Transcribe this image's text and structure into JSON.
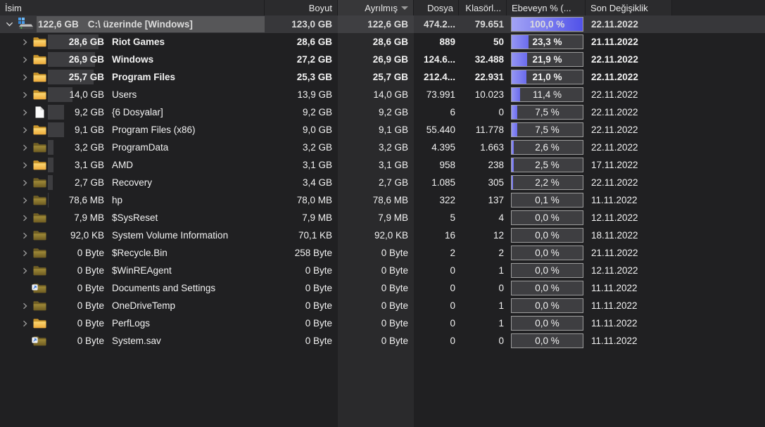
{
  "colors": {
    "background": "#202022",
    "sorted_column_band": "#2a2a2c",
    "selection": "#565658",
    "percent_bar_blue": "#7c7df0",
    "percent_box_border": "#9d9d9d",
    "folder_yellow": "#f2c44c",
    "header_background": "#2b2b2d"
  },
  "header": {
    "columns": [
      {
        "id": "name",
        "label": "İsim"
      },
      {
        "id": "size",
        "label": "Boyut"
      },
      {
        "id": "allocated",
        "label": "Ayrılmış",
        "sorted": "descending"
      },
      {
        "id": "files",
        "label": "Dosya"
      },
      {
        "id": "folders",
        "label": "Klasörl..."
      },
      {
        "id": "percent",
        "label": "Ebeveyn % (..."
      },
      {
        "id": "modified",
        "label": "Son Değişiklik"
      }
    ]
  },
  "rows": [
    {
      "level": 0,
      "expander": "expanded",
      "icon": "drive",
      "size_label": "122,6 GB",
      "name": "C:\\ üzerinde  [Windows]",
      "size": "123,0 GB",
      "allocated": "122,6 GB",
      "files": "474.2...",
      "folders": "79.651",
      "percent": "100,0 %",
      "percent_value": 100.0,
      "modified": "22.11.2022",
      "selected": true
    },
    {
      "level": 1,
      "expander": "collapsed",
      "icon": "folder",
      "size_label": "28,6 GB",
      "name": "Riot Games",
      "size": "28,6 GB",
      "allocated": "28,6 GB",
      "files": "889",
      "folders": "50",
      "percent": "23,3 %",
      "percent_value": 23.3,
      "modified": "21.11.2022"
    },
    {
      "level": 1,
      "expander": "collapsed",
      "icon": "folder",
      "size_label": "26,9 GB",
      "name": "Windows",
      "size": "27,2 GB",
      "allocated": "26,9 GB",
      "files": "124.6...",
      "folders": "32.488",
      "percent": "21,9 %",
      "percent_value": 21.9,
      "modified": "22.11.2022"
    },
    {
      "level": 1,
      "expander": "collapsed",
      "icon": "folder",
      "size_label": "25,7 GB",
      "name": "Program Files",
      "size": "25,3 GB",
      "allocated": "25,7 GB",
      "files": "212.4...",
      "folders": "22.931",
      "percent": "21,0 %",
      "percent_value": 21.0,
      "modified": "22.11.2022"
    },
    {
      "level": 1,
      "expander": "collapsed",
      "icon": "folder",
      "size_label": "14,0 GB",
      "name": "Users",
      "size": "13,9 GB",
      "allocated": "14,0 GB",
      "files": "73.991",
      "folders": "10.023",
      "percent": "11,4 %",
      "percent_value": 11.4,
      "modified": "22.11.2022"
    },
    {
      "level": 1,
      "expander": "collapsed",
      "icon": "file",
      "size_label": "9,2 GB",
      "name": "{6 Dosyalar]",
      "size": "9,2 GB",
      "allocated": "9,2 GB",
      "files": "6",
      "folders": "0",
      "percent": "7,5 %",
      "percent_value": 7.5,
      "modified": "22.11.2022"
    },
    {
      "level": 1,
      "expander": "collapsed",
      "icon": "folder",
      "size_label": "9,1 GB",
      "name": "Program Files (x86)",
      "size": "9,0 GB",
      "allocated": "9,1 GB",
      "files": "55.440",
      "folders": "11.778",
      "percent": "7,5 %",
      "percent_value": 7.5,
      "modified": "22.11.2022"
    },
    {
      "level": 1,
      "expander": "collapsed",
      "icon": "folder-dim",
      "size_label": "3,2 GB",
      "name": "ProgramData",
      "size": "3,2 GB",
      "allocated": "3,2 GB",
      "files": "4.395",
      "folders": "1.663",
      "percent": "2,6 %",
      "percent_value": 2.6,
      "modified": "22.11.2022"
    },
    {
      "level": 1,
      "expander": "collapsed",
      "icon": "folder",
      "size_label": "3,1 GB",
      "name": "AMD",
      "size": "3,1 GB",
      "allocated": "3,1 GB",
      "files": "958",
      "folders": "238",
      "percent": "2,5 %",
      "percent_value": 2.5,
      "modified": "17.11.2022"
    },
    {
      "level": 1,
      "expander": "collapsed",
      "icon": "folder-dim",
      "size_label": "2,7 GB",
      "name": "Recovery",
      "size": "3,4 GB",
      "allocated": "2,7 GB",
      "files": "1.085",
      "folders": "305",
      "percent": "2,2 %",
      "percent_value": 2.2,
      "modified": "22.11.2022"
    },
    {
      "level": 1,
      "expander": "collapsed",
      "icon": "folder-dim",
      "size_label": "78,6 MB",
      "name": "hp",
      "size": "78,0 MB",
      "allocated": "78,6 MB",
      "files": "322",
      "folders": "137",
      "percent": "0,1 %",
      "percent_value": 0.1,
      "modified": "11.11.2022"
    },
    {
      "level": 1,
      "expander": "collapsed",
      "icon": "folder-dim",
      "size_label": "7,9 MB",
      "name": "$SysReset",
      "size": "7,9 MB",
      "allocated": "7,9 MB",
      "files": "5",
      "folders": "4",
      "percent": "0,0 %",
      "percent_value": 0,
      "modified": "12.11.2022"
    },
    {
      "level": 1,
      "expander": "collapsed",
      "icon": "folder-dim",
      "size_label": "92,0 KB",
      "name": "System Volume Information",
      "size": "70,1 KB",
      "allocated": "92,0 KB",
      "files": "16",
      "folders": "12",
      "percent": "0,0 %",
      "percent_value": 0,
      "modified": "18.11.2022"
    },
    {
      "level": 1,
      "expander": "collapsed",
      "icon": "folder-dim",
      "size_label": "0 Byte",
      "name": "$Recycle.Bin",
      "size": "258 Byte",
      "allocated": "0 Byte",
      "files": "2",
      "folders": "2",
      "percent": "0,0 %",
      "percent_value": 0,
      "modified": "21.11.2022"
    },
    {
      "level": 1,
      "expander": "collapsed",
      "icon": "folder-dim",
      "size_label": "0 Byte",
      "name": "$WinREAgent",
      "size": "0 Byte",
      "allocated": "0 Byte",
      "files": "0",
      "folders": "1",
      "percent": "0,0 %",
      "percent_value": 0,
      "modified": "12.11.2022"
    },
    {
      "level": 1,
      "expander": "none",
      "icon": "folder-dim-link",
      "size_label": "0 Byte",
      "name": "Documents and Settings",
      "size": "0 Byte",
      "allocated": "0 Byte",
      "files": "0",
      "folders": "0",
      "percent": "0,0 %",
      "percent_value": 0,
      "modified": "11.11.2022"
    },
    {
      "level": 1,
      "expander": "collapsed",
      "icon": "folder-dim",
      "size_label": "0 Byte",
      "name": "OneDriveTemp",
      "size": "0 Byte",
      "allocated": "0 Byte",
      "files": "0",
      "folders": "1",
      "percent": "0,0 %",
      "percent_value": 0,
      "modified": "11.11.2022"
    },
    {
      "level": 1,
      "expander": "collapsed",
      "icon": "folder",
      "size_label": "0 Byte",
      "name": "PerfLogs",
      "size": "0 Byte",
      "allocated": "0 Byte",
      "files": "0",
      "folders": "1",
      "percent": "0,0 %",
      "percent_value": 0,
      "modified": "11.11.2022"
    },
    {
      "level": 1,
      "expander": "none",
      "icon": "folder-dim-link",
      "size_label": "0 Byte",
      "name": "System.sav",
      "size": "0 Byte",
      "allocated": "0 Byte",
      "files": "0",
      "folders": "0",
      "percent": "0,0 %",
      "percent_value": 0,
      "modified": "11.11.2022"
    }
  ]
}
